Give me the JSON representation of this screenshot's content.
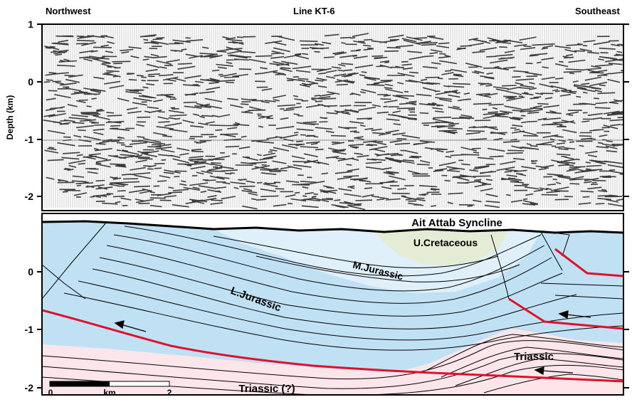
{
  "header": {
    "left": "Northwest",
    "center": "Line KT-6",
    "right": "Southeast"
  },
  "seismic_panel": {
    "y_axis_title": "Depth (km)",
    "ticks": [
      "1",
      "0",
      "-1",
      "-2"
    ]
  },
  "section_panel": {
    "ticks": [
      "0",
      "-1",
      "-2"
    ],
    "labels": {
      "syncline": "Ait Attab Syncline",
      "u_cretaceous": "U.Cretaceous",
      "m_jurassic": "M.Jurassic",
      "l_jurassic": "L.Jurassic",
      "triassic": "Triassic",
      "triassic_q": "Triassic (?)"
    },
    "scale_bar": {
      "start": "0",
      "unit": "km",
      "end": "2"
    }
  },
  "colors": {
    "jurassic_fill": "#bfe1f3",
    "m_jurassic_fill": "#dff0fa",
    "cretaceous_fill": "#e5ecd6",
    "triassic_fill": "#fce6ea",
    "fault_red": "#e0102c",
    "line_black": "#000000"
  }
}
